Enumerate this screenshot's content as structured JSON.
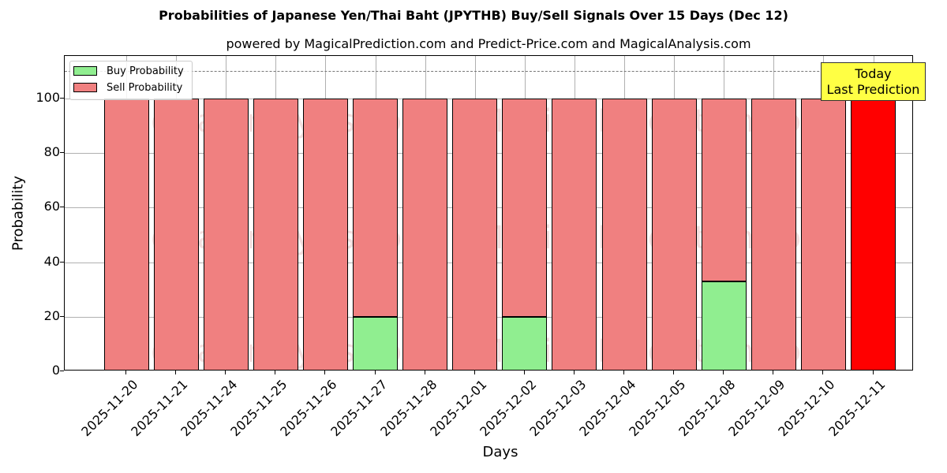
{
  "chart_data": {
    "type": "bar",
    "title": "Probabilities of Japanese Yen/Thai Baht (JPYTHB) Buy/Sell Signals Over 15 Days (Dec 12)",
    "subtitle": "powered by MagicalPrediction.com and Predict-Price.com and MagicalAnalysis.com",
    "xlabel": "Days",
    "ylabel": "Probability",
    "ylim": [
      0,
      115
    ],
    "yticks": [
      0,
      20,
      40,
      60,
      80,
      100
    ],
    "grid": true,
    "legend_position": "upper left",
    "stacked": true,
    "categories": [
      "2025-11-20",
      "2025-11-21",
      "2025-11-24",
      "2025-11-25",
      "2025-11-26",
      "2025-11-27",
      "2025-11-28",
      "2025-12-01",
      "2025-12-02",
      "2025-12-03",
      "2025-12-04",
      "2025-12-05",
      "2025-12-08",
      "2025-12-09",
      "2025-12-10",
      "2025-12-11"
    ],
    "series": [
      {
        "name": "Buy Probability",
        "color": "#90ee90",
        "values": [
          0,
          0,
          0,
          0,
          0,
          20,
          0,
          0,
          20,
          0,
          0,
          0,
          33,
          0,
          0,
          0
        ]
      },
      {
        "name": "Sell Probability",
        "color": "#f08080",
        "values": [
          100,
          100,
          100,
          100,
          100,
          80,
          100,
          100,
          80,
          100,
          100,
          100,
          67,
          100,
          100,
          100
        ]
      }
    ],
    "highlight": {
      "index": 15,
      "color": "#ff0000",
      "label": "Today\nLast Prediction"
    },
    "reference_line": {
      "y": 110,
      "style": "dashed"
    },
    "annotations": [
      "Today",
      "Last Prediction"
    ],
    "watermarks": [
      "MagicalAnalysis.com",
      "MagicalPrediction.com"
    ]
  },
  "labels": {
    "title": "Probabilities of Japanese Yen/Thai Baht (JPYTHB) Buy/Sell Signals Over 15 Days (Dec 12)",
    "subtitle": "powered by MagicalPrediction.com and Predict-Price.com and MagicalAnalysis.com",
    "xlabel": "Days",
    "ylabel": "Probability",
    "legend_buy": "Buy Probability",
    "legend_sell": "Sell Probability",
    "today_line1": "Today",
    "today_line2": "Last Prediction",
    "wm1": "MagicalAnalysis.com",
    "wm2": "MagicalPrediction.com"
  },
  "colors": {
    "buy": "#90ee90",
    "sell": "#f08080",
    "today": "#ff0000",
    "today_box": "#ffff44"
  }
}
